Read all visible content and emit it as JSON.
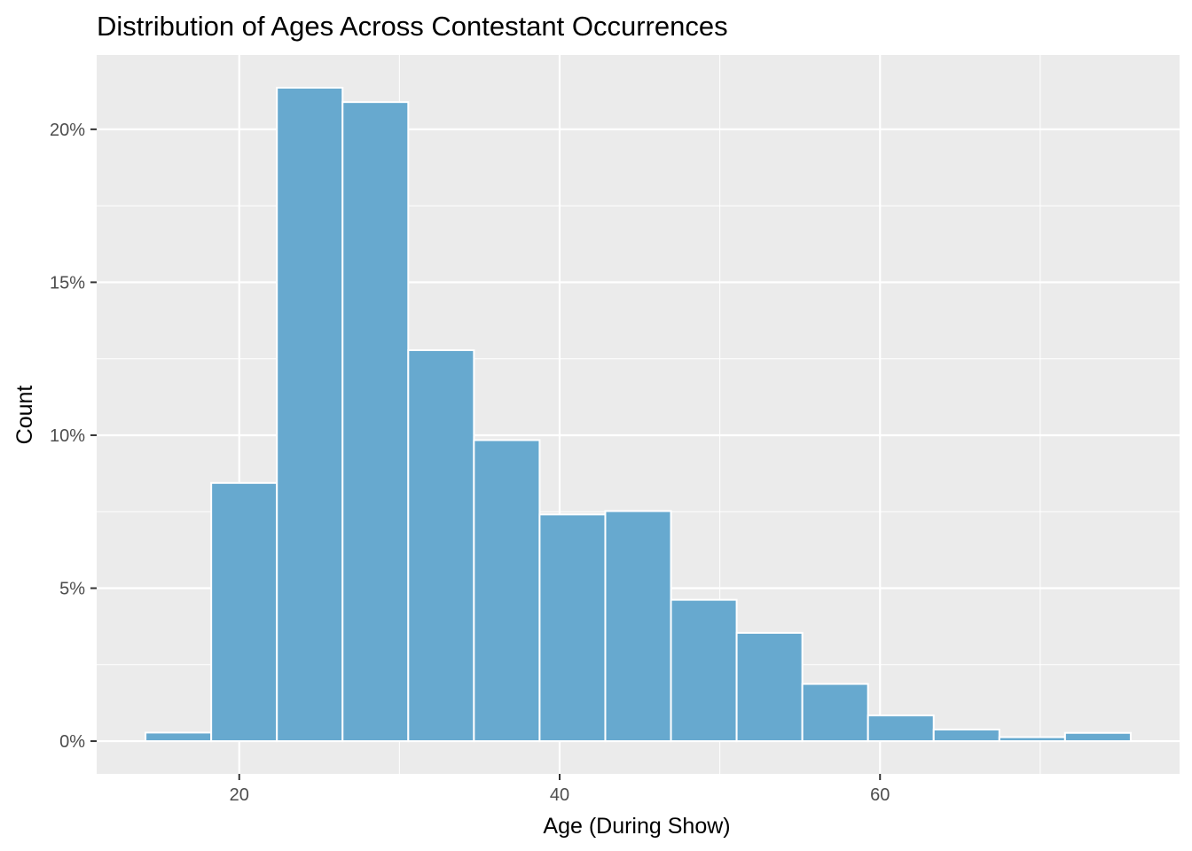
{
  "chart_data": {
    "type": "bar",
    "title": "Distribution of Ages Across Contestant Occurrences",
    "xlabel": "Age (During Show)",
    "ylabel": "Count",
    "bin_width": 4.1,
    "bins": [
      {
        "start": 14.15,
        "end": 18.25,
        "value": 0.28
      },
      {
        "start": 18.25,
        "end": 22.35,
        "value": 8.44
      },
      {
        "start": 22.35,
        "end": 26.45,
        "value": 21.36
      },
      {
        "start": 26.45,
        "end": 30.55,
        "value": 20.89
      },
      {
        "start": 30.55,
        "end": 34.65,
        "value": 12.78
      },
      {
        "start": 34.65,
        "end": 38.75,
        "value": 9.84
      },
      {
        "start": 38.75,
        "end": 42.85,
        "value": 7.41
      },
      {
        "start": 42.85,
        "end": 46.95,
        "value": 7.52
      },
      {
        "start": 46.95,
        "end": 51.05,
        "value": 4.62
      },
      {
        "start": 51.05,
        "end": 55.15,
        "value": 3.54
      },
      {
        "start": 55.15,
        "end": 59.25,
        "value": 1.87
      },
      {
        "start": 59.25,
        "end": 63.35,
        "value": 0.84
      },
      {
        "start": 63.35,
        "end": 67.45,
        "value": 0.38
      },
      {
        "start": 67.45,
        "end": 71.55,
        "value": 0.13
      },
      {
        "start": 71.55,
        "end": 75.65,
        "value": 0.27
      }
    ],
    "xlim": [
      11.1,
      78.7
    ],
    "ylim": [
      -1.07,
      22.43
    ],
    "x_ticks": [
      {
        "value": 20,
        "label": "20"
      },
      {
        "value": 40,
        "label": "40"
      },
      {
        "value": 60,
        "label": "60"
      }
    ],
    "y_ticks": [
      {
        "value": 0,
        "label": "0%"
      },
      {
        "value": 5,
        "label": "5%"
      },
      {
        "value": 10,
        "label": "10%"
      },
      {
        "value": 15,
        "label": "15%"
      },
      {
        "value": 20,
        "label": "20%"
      }
    ],
    "grid": true,
    "colors": {
      "panel_background": "#ebebeb",
      "grid_major": "#ffffff",
      "bar_fill": "#67a9cf",
      "bar_outline": "#ffffff",
      "tick_label": "#4d4d4d",
      "tick_mark": "#333333"
    }
  }
}
